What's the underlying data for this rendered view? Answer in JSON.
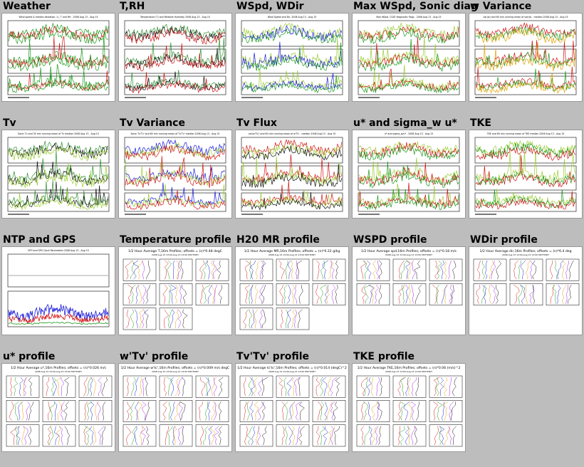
{
  "gallery": [
    {
      "title": "Weather",
      "kind": "ts",
      "subtitle": "Wind speed & median deviation, U,, T and RH - 2008 Aug 13 - Aug 15",
      "colors": [
        "#1a9a1a",
        "#d21414",
        "#1a9a1a"
      ]
    },
    {
      "title": "T,RH",
      "kind": "ts",
      "subtitle": "Temperature (T) and Relative Humidity 2008 Aug 13 - Aug 15",
      "colors": [
        "#2f8f2f",
        "#111111",
        "#d21414"
      ]
    },
    {
      "title": "WSpd, WDir",
      "kind": "ts",
      "subtitle": "Wind Speed and Dir, 2008 Aug 13 - Aug 15",
      "colors": [
        "#9acd32",
        "#1c1cd8",
        "#1a9a1a"
      ]
    },
    {
      "title": "Max WSpd, Sonic diag",
      "kind": "ts",
      "subtitle": "Max WSpd, CSAT diagnostic flags - 2008 Aug 13 - Aug 15",
      "colors": [
        "#9acd32",
        "#d21414",
        "#1a9a1a"
      ]
    },
    {
      "title": "w Variance",
      "kind": "ts",
      "subtitle": "var(w) and 60 min running mean of var(w) - median 2008 Aug 13 - Aug 15",
      "colors": [
        "#d21414",
        "#1a9a1a",
        "#e0a000"
      ]
    },
    {
      "title": "Tv",
      "kind": "ts",
      "subtitle": "Sonic Tv and 30 min running mean of Tv median 2008 Aug 13 - Aug 15",
      "colors": [
        "#2f8f2f",
        "#111111",
        "#9acd32"
      ]
    },
    {
      "title": "Tv Variance",
      "kind": "ts",
      "subtitle": "Sonic Tv'Tv' and 60 min running mean of Tv'Tv' median 2008 Aug 13 - Aug 15",
      "colors": [
        "#1c1cd8",
        "#9acd32",
        "#d21414"
      ]
    },
    {
      "title": "Tv Flux",
      "kind": "ts",
      "subtitle": "var(w'Tv') and 60 min running mean of w'Tv' - median 2008 Aug 13 - Aug 15",
      "colors": [
        "#d21414",
        "#9acd32",
        "#111111"
      ]
    },
    {
      "title": "u* and sigma_w u*",
      "kind": "ts",
      "subtitle": "u* and sigma_w/u* - 2008 Aug 13 - Aug 15",
      "colors": [
        "#9acd32",
        "#d21414",
        "#1a9a1a"
      ]
    },
    {
      "title": "TKE",
      "kind": "ts",
      "subtitle": "TKE and 60 min running mean of TKE median 2008 Aug 13 - Aug 15",
      "colors": [
        "#9acd32",
        "#1a9a1a",
        "#d21414"
      ]
    },
    {
      "title": "NTP and GPS",
      "kind": "ntp",
      "subtitle": "NTP and GPS Clock Parameters 2008 Aug 13 - Aug 15",
      "colors": [
        "#1c1cd8",
        "#d21414",
        "#1a9a1a"
      ]
    },
    {
      "title": "Temperature profile",
      "kind": "profile",
      "subtitle": "1/2 Hour Average T,16m Profiles; offsets = (n)*0.48 degC",
      "subtitle2": "2008 Aug 13 13:00-Aug 13 13:00 MST7MDT",
      "rows": 3,
      "colors": [
        "#d21414",
        "#1a9a1a",
        "#1c1cd8",
        "#e0a000",
        "#a020f0",
        "#111111"
      ]
    },
    {
      "title": "H20 MR profile",
      "kind": "profile",
      "subtitle": "1/2 Hour Average MR,16m Profiles; offsets = (n)*0.22 g/kg",
      "subtitle2": "2008 Aug 13 13:00-Aug 13 13:00 MST7MDT",
      "rows": 3,
      "colors": [
        "#d21414",
        "#1a9a1a",
        "#1c1cd8",
        "#e0a000",
        "#a020f0",
        "#111111"
      ]
    },
    {
      "title": "WSPD profile",
      "kind": "profile",
      "subtitle": "1/2 Hour Average spd,16m Profiles; offsets = (n)*0.18 m/s",
      "subtitle2": "2008 Aug 13 13:00-Aug 13 13:00 MST7MDT",
      "rows": 2,
      "colors": [
        "#d21414",
        "#1a9a1a",
        "#1c1cd8",
        "#e0a000",
        "#a020f0",
        "#111111"
      ]
    },
    {
      "title": "WDir profile",
      "kind": "profile",
      "subtitle": "1/2 Hour Average dir,16m Profiles; offsets = (n)*6.4 deg",
      "subtitle2": "2008 Aug 13 13:00-Aug 13 13:00 MST7MDT",
      "rows": 2,
      "colors": [
        "#d21414",
        "#1a9a1a",
        "#1c1cd8",
        "#e0a000",
        "#a020f0",
        "#111111"
      ]
    },
    {
      "title": "u* profile",
      "kind": "profile",
      "subtitle": "1/2 Hour Average u*,16m Profiles; offsets = (n)*0.026 m/s",
      "subtitle2": "2008 Aug 13 13:00-Aug 13 13:00 MST7MDT",
      "rows": 3,
      "colors": [
        "#d21414",
        "#1a9a1a",
        "#1c1cd8",
        "#e0a000",
        "#a020f0",
        "#111111"
      ]
    },
    {
      "title": "w'Tv' profile",
      "kind": "profile",
      "subtitle": "1/2 Hour Average w'tc',16m Profiles; offsets = (n)*0.009 m/s degC",
      "subtitle2": "2008 Aug 13 13:00-Aug 13 13:00 MST7MDT",
      "rows": 3,
      "colors": [
        "#d21414",
        "#1a9a1a",
        "#1c1cd8",
        "#e0a000",
        "#a020f0",
        "#111111"
      ]
    },
    {
      "title": "Tv'Tv' profile",
      "kind": "profile",
      "subtitle": "1/2 Hour Average tc'tc',16m Profiles; offsets = (n)*0.014 (degC)^2",
      "subtitle2": "2008 Aug 13 13:00-Aug 13 13:00 MST7MDT",
      "rows": 3,
      "colors": [
        "#d21414",
        "#1a9a1a",
        "#1c1cd8",
        "#e0a000",
        "#a020f0",
        "#111111"
      ]
    },
    {
      "title": "TKE profile",
      "kind": "profile",
      "subtitle": "1/2 Hour Average TKE,16m Profiles; offsets = (n)*0.06 (m/s)^2",
      "subtitle2": "2008 Aug 13 13:00-Aug 13 13:00 MST7MDT",
      "rows": 3,
      "colors": [
        "#d21414",
        "#1a9a1a",
        "#1c1cd8",
        "#e0a000",
        "#a020f0",
        "#111111"
      ]
    }
  ]
}
